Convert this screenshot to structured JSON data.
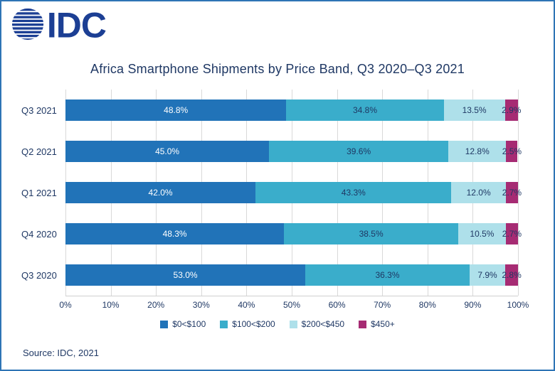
{
  "logo": {
    "text": "IDC"
  },
  "palette": {
    "navy_text": "#1F3864",
    "border_blue": "#2E74B5",
    "logo_blue": "#1C3F94",
    "grid_line": "#D9D9D9"
  },
  "chart_data": {
    "type": "bar",
    "stacked": true,
    "orientation": "horizontal",
    "title": "Africa Smartphone Shipments by Price Band, Q3 2020–Q3 2021",
    "categories": [
      "Q3 2021",
      "Q2 2021",
      "Q1 2021",
      "Q4 2020",
      "Q3 2020"
    ],
    "series": [
      {
        "name": "$0<$100",
        "color": "#2173B8",
        "values": [
          48.8,
          45.0,
          42.0,
          48.3,
          53.0
        ]
      },
      {
        "name": "$100<$200",
        "color": "#3AADCB",
        "values": [
          34.8,
          39.6,
          43.3,
          38.5,
          36.3
        ]
      },
      {
        "name": "$200<$450",
        "color": "#AEE0EA",
        "values": [
          13.5,
          12.8,
          12.0,
          10.5,
          7.9
        ]
      },
      {
        "name": "$450+",
        "color": "#A62B73",
        "values": [
          2.9,
          2.5,
          2.7,
          2.7,
          2.8
        ]
      }
    ],
    "rows": [
      {
        "category": "Q3 2021",
        "values": [
          48.8,
          34.8,
          13.5,
          2.9
        ],
        "labels": [
          "48.8%",
          "34.8%",
          "13.5%",
          "2.9%"
        ]
      },
      {
        "category": "Q2 2021",
        "values": [
          45.0,
          39.6,
          12.8,
          2.5
        ],
        "labels": [
          "45.0%",
          "39.6%",
          "12.8%",
          "2.5%"
        ]
      },
      {
        "category": "Q1 2021",
        "values": [
          42.0,
          43.3,
          12.0,
          2.7
        ],
        "labels": [
          "42.0%",
          "43.3%",
          "12.0%",
          "2.7%"
        ]
      },
      {
        "category": "Q4 2020",
        "values": [
          48.3,
          38.5,
          10.5,
          2.7
        ],
        "labels": [
          "48.3%",
          "38.5%",
          "10.5%",
          "2.7%"
        ]
      },
      {
        "category": "Q3 2020",
        "values": [
          53.0,
          36.3,
          7.9,
          2.8
        ],
        "labels": [
          "53.0%",
          "36.3%",
          "7.9%",
          "2.8%"
        ]
      }
    ],
    "x_ticks": [
      "0%",
      "10%",
      "20%",
      "30%",
      "40%",
      "50%",
      "60%",
      "70%",
      "80%",
      "90%",
      "100%"
    ],
    "xlim": [
      0,
      100
    ],
    "xlabel": "",
    "ylabel": "",
    "grid": true,
    "legend_position": "bottom"
  },
  "source": "Source: IDC, 2021"
}
